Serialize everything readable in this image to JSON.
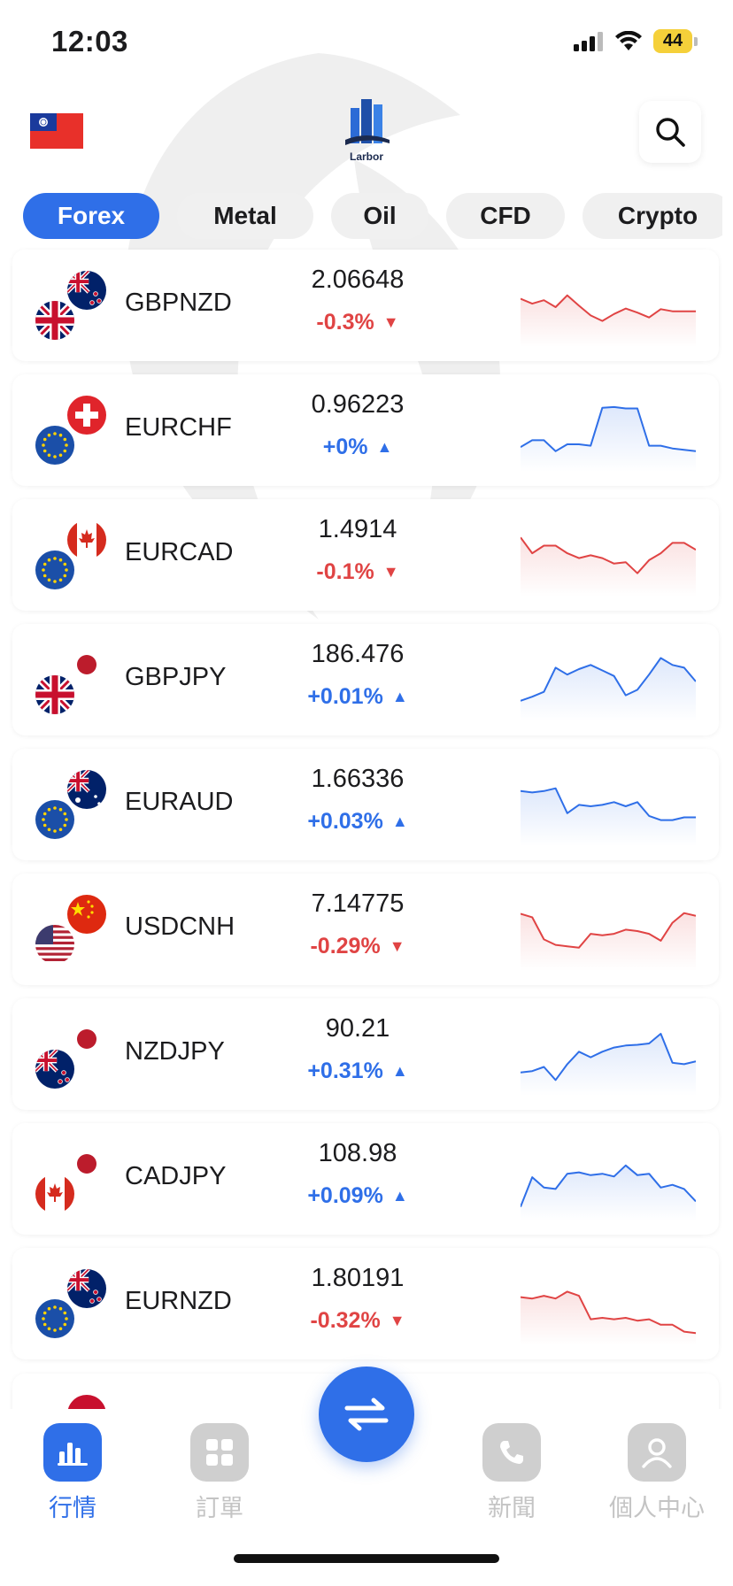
{
  "status_bar": {
    "time": "12:03",
    "battery": "44",
    "signal_icon": "signal-icon",
    "wifi_icon": "wifi-icon"
  },
  "header": {
    "region_flag": "taiwan-flag",
    "logo_text": "Larbor",
    "search_icon": "search-icon"
  },
  "tabs": [
    {
      "label": "Forex",
      "active": true
    },
    {
      "label": "Metal",
      "active": false
    },
    {
      "label": "Oil",
      "active": false
    },
    {
      "label": "CFD",
      "active": false
    },
    {
      "label": "Crypto",
      "active": false
    }
  ],
  "quotes": [
    {
      "symbol": "GBPNZD",
      "price": "2.06648",
      "change": "-0.3%",
      "direction": "down",
      "flags": [
        "nz",
        "gb"
      ],
      "spark": [
        0.62,
        0.55,
        0.6,
        0.5,
        0.67,
        0.52,
        0.38,
        0.3,
        0.4,
        0.48,
        0.42,
        0.35,
        0.47,
        0.44,
        0.44,
        0.44
      ]
    },
    {
      "symbol": "EURCHF",
      "price": "0.96223",
      "change": "+0%",
      "direction": "up",
      "flags": [
        "ch",
        "eu"
      ],
      "spark": [
        0.28,
        0.38,
        0.38,
        0.22,
        0.32,
        0.32,
        0.3,
        0.85,
        0.86,
        0.84,
        0.84,
        0.3,
        0.3,
        0.26,
        0.24,
        0.22
      ]
    },
    {
      "symbol": "EURCAD",
      "price": "1.4914",
      "change": "-0.1%",
      "direction": "down",
      "flags": [
        "ca",
        "eu"
      ],
      "spark": [
        0.78,
        0.55,
        0.66,
        0.66,
        0.55,
        0.48,
        0.52,
        0.48,
        0.4,
        0.42,
        0.26,
        0.45,
        0.55,
        0.7,
        0.7,
        0.6
      ]
    },
    {
      "symbol": "GBPJPY",
      "price": "186.476",
      "change": "+0.01%",
      "direction": "up",
      "flags": [
        "jp",
        "gb"
      ],
      "spark": [
        0.22,
        0.28,
        0.35,
        0.7,
        0.6,
        0.68,
        0.74,
        0.66,
        0.58,
        0.3,
        0.38,
        0.6,
        0.84,
        0.74,
        0.7,
        0.5
      ]
    },
    {
      "symbol": "EURAUD",
      "price": "1.66336",
      "change": "+0.03%",
      "direction": "up",
      "flags": [
        "au",
        "eu"
      ],
      "spark": [
        0.72,
        0.7,
        0.72,
        0.76,
        0.4,
        0.52,
        0.5,
        0.52,
        0.56,
        0.5,
        0.56,
        0.36,
        0.3,
        0.3,
        0.34,
        0.34
      ]
    },
    {
      "symbol": "USDCNH",
      "price": "7.14775",
      "change": "-0.29%",
      "direction": "down",
      "flags": [
        "cn",
        "us"
      ],
      "spark": [
        0.75,
        0.7,
        0.38,
        0.3,
        0.28,
        0.26,
        0.46,
        0.44,
        0.46,
        0.52,
        0.5,
        0.46,
        0.36,
        0.62,
        0.76,
        0.72
      ]
    },
    {
      "symbol": "NZDJPY",
      "price": "90.21",
      "change": "+0.31%",
      "direction": "up",
      "flags": [
        "jp",
        "nz"
      ],
      "spark": [
        0.26,
        0.28,
        0.34,
        0.15,
        0.38,
        0.56,
        0.48,
        0.56,
        0.62,
        0.65,
        0.66,
        0.68,
        0.82,
        0.4,
        0.38,
        0.42
      ]
    },
    {
      "symbol": "CADJPY",
      "price": "108.98",
      "change": "+0.09%",
      "direction": "up",
      "flags": [
        "jp",
        "ca"
      ],
      "spark": [
        0.12,
        0.55,
        0.4,
        0.38,
        0.6,
        0.62,
        0.58,
        0.6,
        0.56,
        0.72,
        0.58,
        0.6,
        0.4,
        0.44,
        0.38,
        0.2
      ]
    },
    {
      "symbol": "EURNZD",
      "price": "1.80191",
      "change": "-0.32%",
      "direction": "down",
      "flags": [
        "nz",
        "eu"
      ],
      "spark": [
        0.62,
        0.6,
        0.64,
        0.6,
        0.7,
        0.64,
        0.3,
        0.32,
        0.3,
        0.32,
        0.28,
        0.3,
        0.22,
        0.22,
        0.12,
        0.1
      ]
    }
  ],
  "nav": [
    {
      "label": "行情",
      "icon": "market-chart-icon",
      "active": true
    },
    {
      "label": "訂單",
      "icon": "orders-grid-icon",
      "active": false
    },
    {
      "label": "新聞",
      "icon": "news-phone-icon",
      "active": false
    },
    {
      "label": "個人中心",
      "icon": "profile-icon",
      "active": false
    }
  ],
  "fab": {
    "icon": "swap-arrows-icon"
  },
  "colors": {
    "accent": "#2f6fe8",
    "up": "#2f6fe8",
    "down": "#e04444"
  }
}
